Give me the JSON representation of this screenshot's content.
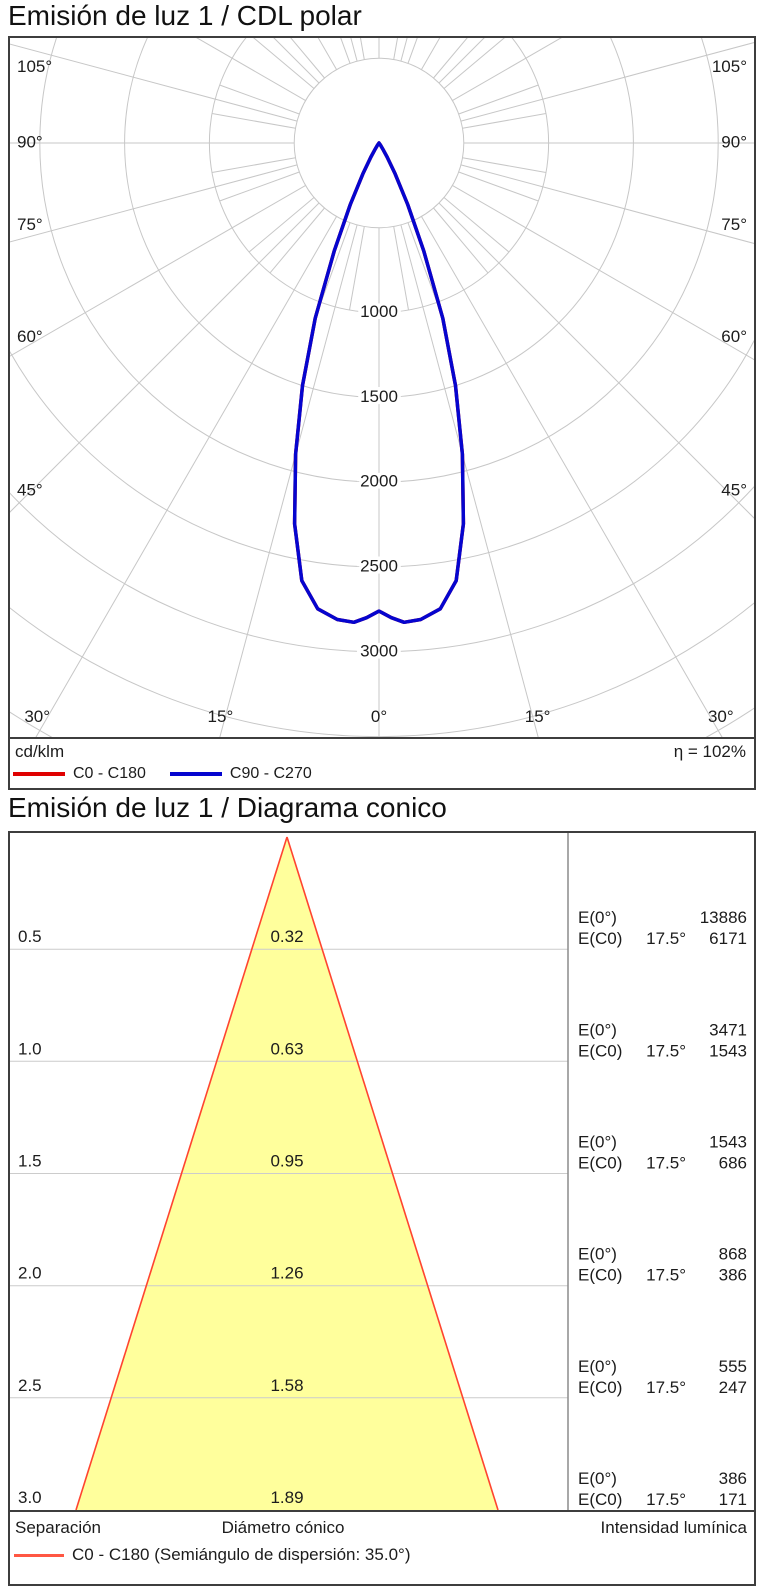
{
  "page": {
    "polar_section_title": "Emisión de luz 1 / CDL polar",
    "cone_section_title": "Emisión de luz 1 / Diagrama conico"
  },
  "polar_legend": {
    "unit": "cd/klm",
    "efficiency": "η = 102%",
    "series": [
      {
        "label": "C0 - C180",
        "color": "#df0000"
      },
      {
        "label": "C90 - C270",
        "color": "#0505cf"
      }
    ]
  },
  "cone_legend": {
    "separation_label": "Separación",
    "diameter_label": "Diámetro cónico",
    "intensity_label": "Intensidad lumínica",
    "series_label": "C0 - C180 (Semiángulo de dispersión: 35.0°)",
    "series_color": "#ff5743"
  },
  "chart_data": [
    {
      "type": "line",
      "subtype": "polar-intensity-diagram",
      "title": "Emisión de luz 1 / CDL polar",
      "unit": "cd/klm",
      "efficiency_text": "η = 102%",
      "angle_tick_labels_deg": [
        0,
        15,
        30,
        45,
        60,
        75,
        90,
        105
      ],
      "ring_step_cd_klm": 500,
      "ring_labels": [
        1000,
        1500,
        2000,
        2500,
        3000
      ],
      "grid_color": "#c7c7c7",
      "series": [
        {
          "name": "C0 - C180",
          "color": "#df0000",
          "angles_deg": [
            0,
            1.5,
            3,
            5,
            7.5,
            10,
            12.5,
            15,
            17.5,
            20,
            22.5,
            25,
            27.5,
            30,
            32.5,
            35,
            40
          ],
          "values_cd_klm": [
            2760,
            2800,
            2830,
            2820,
            2770,
            2620,
            2300,
            1900,
            1500,
            1100,
            690,
            400,
            205,
            95,
            40,
            15,
            0
          ]
        },
        {
          "name": "C90 - C270",
          "color": "#0505cf",
          "angles_deg": [
            0,
            1.5,
            3,
            5,
            7.5,
            10,
            12.5,
            15,
            17.5,
            20,
            22.5,
            25,
            27.5,
            30,
            32.5,
            35,
            40
          ],
          "values_cd_klm": [
            2760,
            2800,
            2830,
            2820,
            2770,
            2620,
            2300,
            1900,
            1500,
            1100,
            690,
            400,
            205,
            95,
            40,
            15,
            0
          ]
        }
      ]
    },
    {
      "type": "table",
      "subtype": "cone-diagram",
      "title": "Emisión de luz 1 / Diagrama conico",
      "beam_half_angle_label": "17.5°",
      "dispersion_semiangle_deg": 35.0,
      "cone_fill": "#ffff9c",
      "cone_edge": "#ff4430",
      "e0_label": "E(0°)",
      "ec0_label": "E(C0)",
      "rows": [
        {
          "separation": "0.5",
          "diameter": "0.32",
          "e0": "13886",
          "ec0_angle": "17.5°",
          "ec0": "6171"
        },
        {
          "separation": "1.0",
          "diameter": "0.63",
          "e0": "3471",
          "ec0_angle": "17.5°",
          "ec0": "1543"
        },
        {
          "separation": "1.5",
          "diameter": "0.95",
          "e0": "1543",
          "ec0_angle": "17.5°",
          "ec0": "686"
        },
        {
          "separation": "2.0",
          "diameter": "1.26",
          "e0": "868",
          "ec0_angle": "17.5°",
          "ec0": "386"
        },
        {
          "separation": "2.5",
          "diameter": "1.58",
          "e0": "555",
          "ec0_angle": "17.5°",
          "ec0": "247"
        },
        {
          "separation": "3.0",
          "diameter": "1.89",
          "e0": "386",
          "ec0_angle": "17.5°",
          "ec0": "171"
        }
      ]
    }
  ]
}
